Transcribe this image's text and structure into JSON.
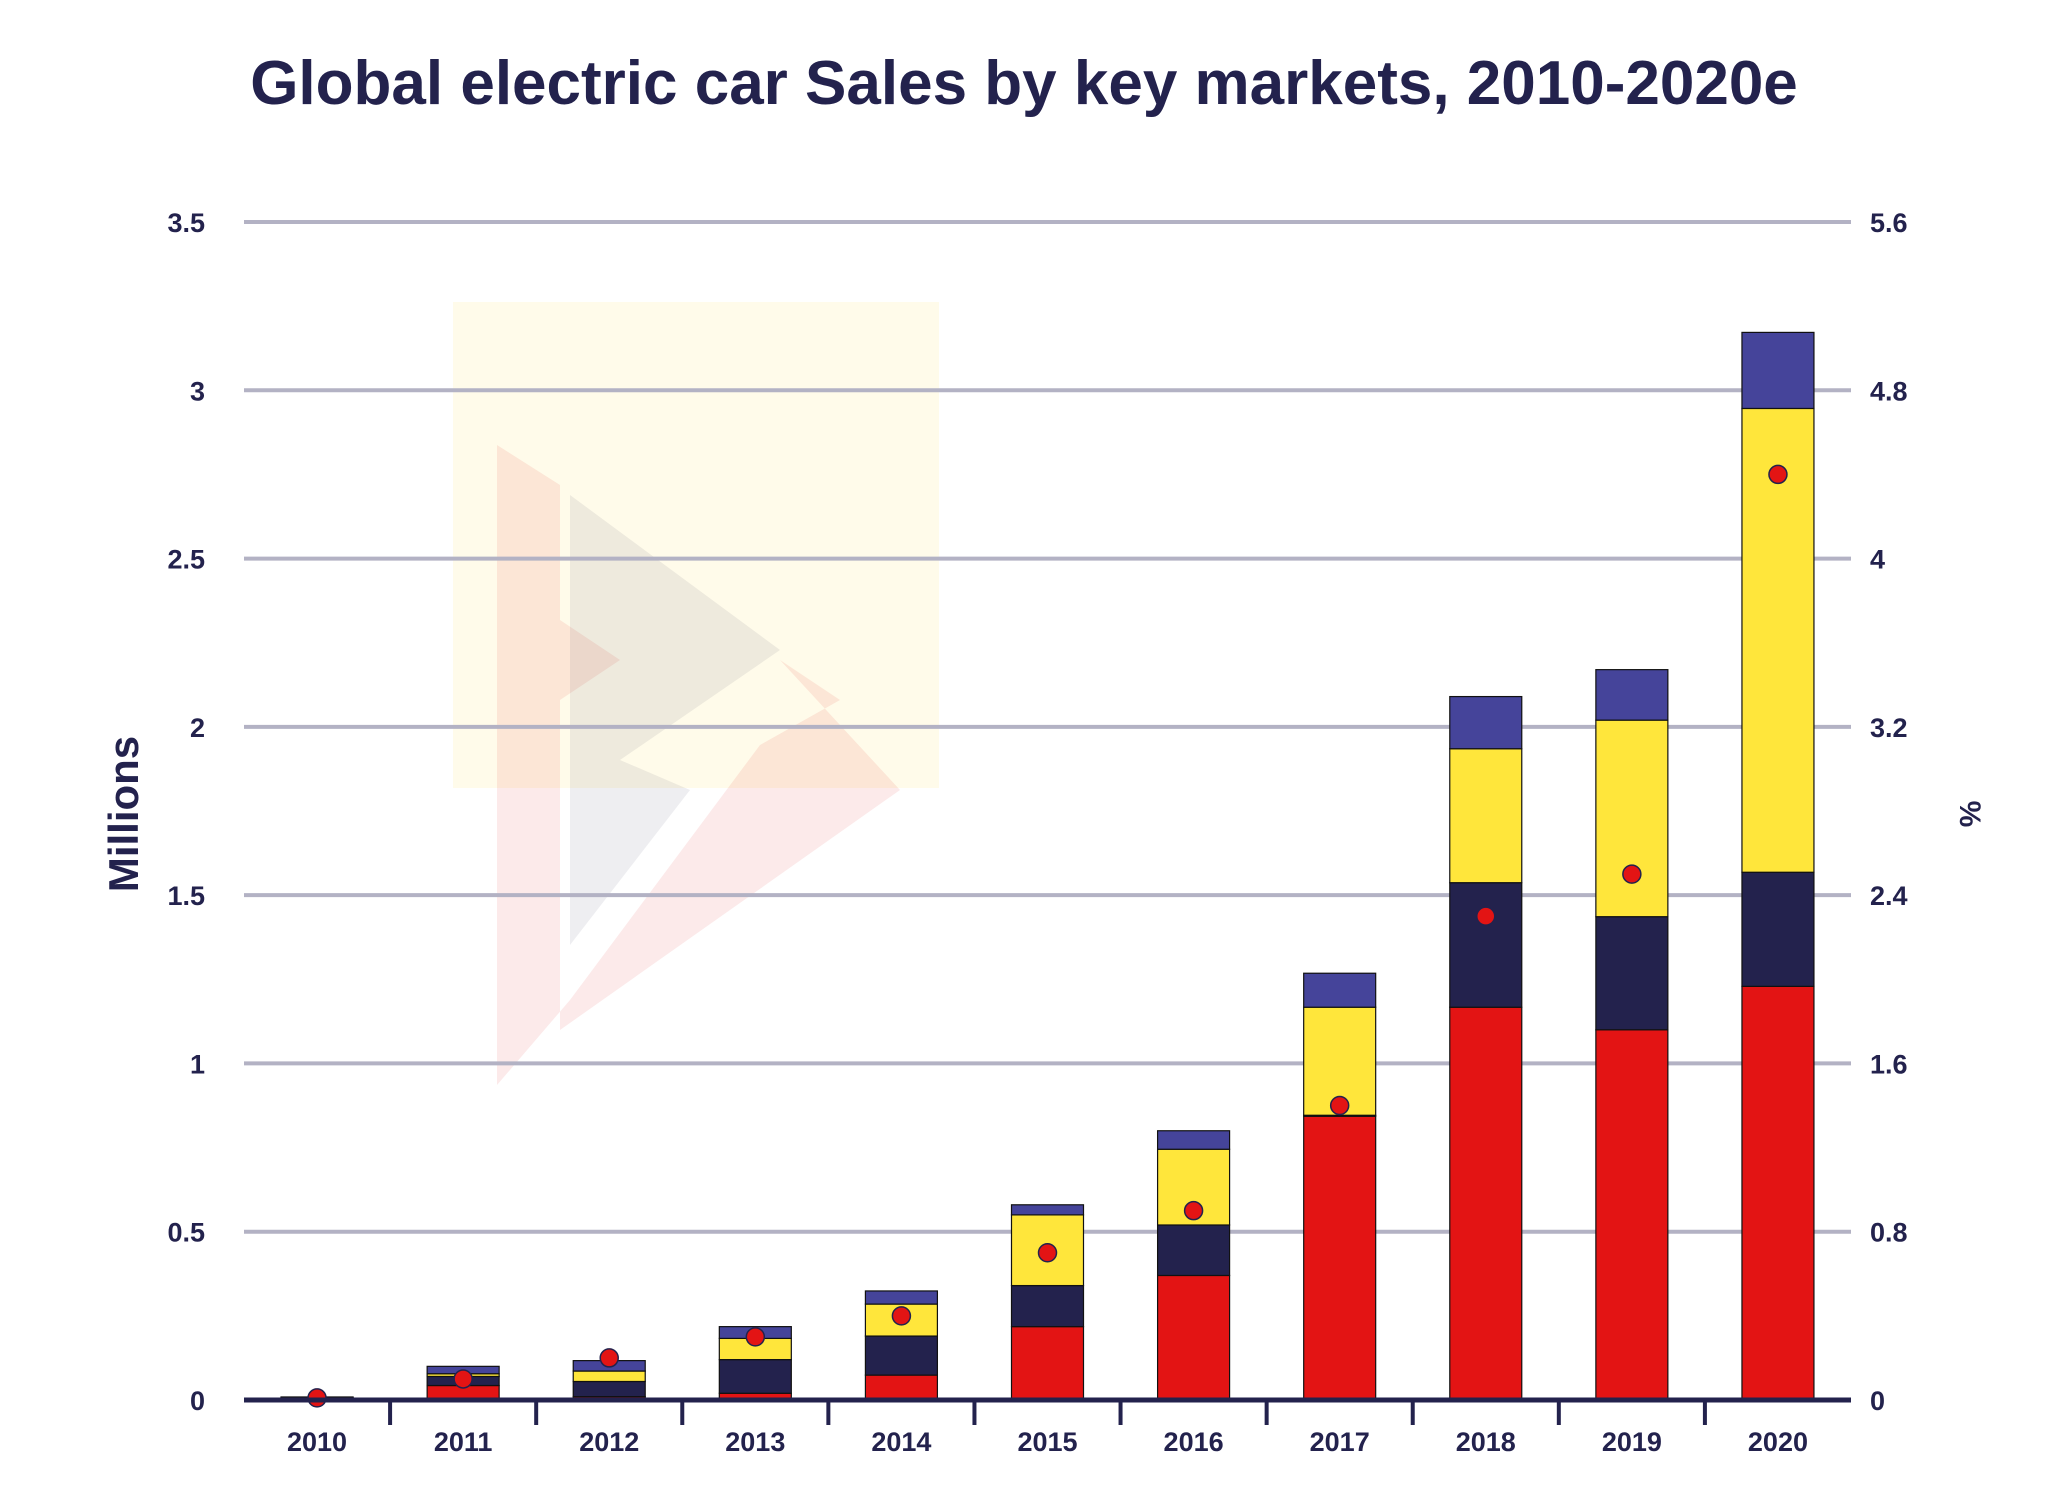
{
  "chart_data": {
    "type": "bar",
    "stacked": true,
    "title": "Global electric car Sales by key markets, 2010-2020e",
    "ylabel": "Millions",
    "y2label": "%",
    "ylim": [
      0,
      3.5
    ],
    "y2lim": [
      0,
      5.6
    ],
    "yticks": [
      "0",
      "0.5",
      "1",
      "1.5",
      "2",
      "2.5",
      "3",
      "3.5"
    ],
    "y2ticks": [
      "0",
      "0.8",
      "1.6",
      "2.4",
      "3.2",
      "4",
      "4.8",
      "5.6"
    ],
    "grid": true,
    "legend": "none",
    "categories": [
      "2010",
      "2011",
      "2012",
      "2013",
      "2014",
      "2015",
      "2016",
      "2017",
      "2018",
      "2019",
      "2020"
    ],
    "series": [
      {
        "color": "#e31414",
        "values": [
          0.005,
          0.043,
          0.01,
          0.02,
          0.074,
          0.218,
          0.37,
          0.843,
          1.167,
          1.1,
          1.229
        ]
      },
      {
        "color": "#23224d",
        "values": [
          0.002,
          0.027,
          0.045,
          0.1,
          0.116,
          0.122,
          0.15,
          0.003,
          0.37,
          0.336,
          0.339
        ]
      },
      {
        "color": "#ffe63b",
        "values": [
          0.001,
          0.008,
          0.031,
          0.063,
          0.095,
          0.21,
          0.225,
          0.321,
          0.398,
          0.584,
          1.378
        ]
      },
      {
        "color": "#45449a",
        "values": [
          0.001,
          0.022,
          0.031,
          0.035,
          0.039,
          0.03,
          0.055,
          0.101,
          0.155,
          0.15,
          0.226
        ]
      }
    ],
    "share_percent": {
      "type": "scatter",
      "axis": "right",
      "color": "#e31414",
      "values": [
        0.01,
        0.1,
        0.2,
        0.3,
        0.4,
        0.7,
        0.9,
        1.4,
        2.3,
        2.5,
        4.4
      ]
    }
  }
}
